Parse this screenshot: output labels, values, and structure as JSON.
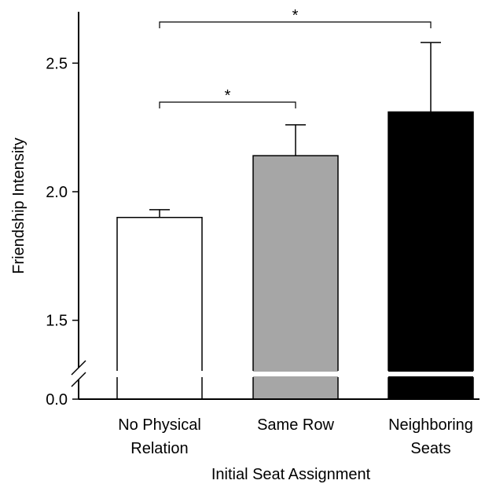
{
  "chart_data": {
    "type": "bar",
    "categories": [
      [
        "No Physical",
        "Relation"
      ],
      [
        "Same Row"
      ],
      [
        "Neighboring",
        "Seats"
      ]
    ],
    "values": [
      1.9,
      2.14,
      2.31
    ],
    "errors": [
      0.03,
      0.12,
      0.27
    ],
    "bar_colors": [
      "#ffffff",
      "#a6a6a6",
      "#000000"
    ],
    "xlabel": "Initial Seat Assignment",
    "ylabel": "Friendship Intensity",
    "y_ticks": [
      "0.0",
      "1.5",
      "2.0",
      "2.5"
    ],
    "ylim": [
      1.32,
      2.7
    ],
    "axis_break": true,
    "significance": [
      {
        "from": 0,
        "to": 1,
        "label": "*"
      },
      {
        "from": 0,
        "to": 2,
        "label": "*"
      }
    ]
  }
}
